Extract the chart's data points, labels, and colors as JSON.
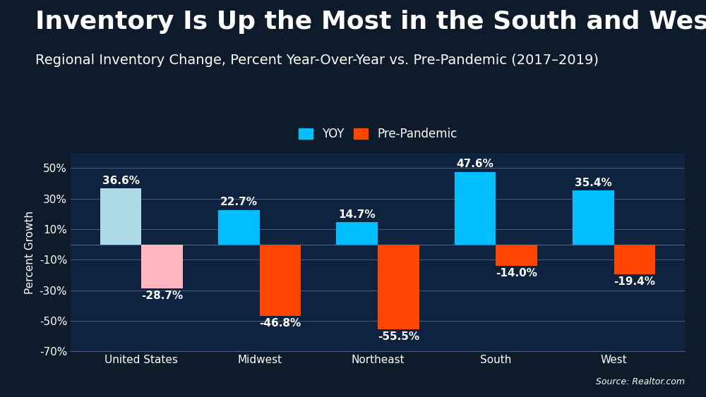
{
  "title": "Inventory Is Up the Most in the South and West",
  "subtitle": "Regional Inventory Change, Percent Year-Over-Year vs. Pre-Pandemic (2017–2019)",
  "categories": [
    "United States",
    "Midwest",
    "Northeast",
    "South",
    "West"
  ],
  "yoy_values": [
    36.6,
    22.7,
    14.7,
    47.6,
    35.4
  ],
  "prepandemic_values": [
    -28.7,
    -46.8,
    -55.5,
    -14.0,
    -19.4
  ],
  "yoy_colors": [
    "#add8e6",
    "#00bfff",
    "#00bfff",
    "#00bfff",
    "#00bfff"
  ],
  "prepandemic_colors": [
    "#ffb6c1",
    "#ff4500",
    "#ff4500",
    "#ff4500",
    "#ff4500"
  ],
  "yoy_color_default": "#00bfff",
  "prepandemic_color_default": "#ff4500",
  "ylabel": "Percent Growth",
  "ylim": [
    -70,
    60
  ],
  "yticks": [
    -70,
    -50,
    -30,
    -10,
    10,
    30,
    50
  ],
  "ytick_labels": [
    "-70%",
    "-50%",
    "-30%",
    "-10%",
    "10%",
    "30%",
    "50%"
  ],
  "background_color": "#0d1b2a",
  "plot_bg_color": "#0d2340",
  "grid_color": "#4a6080",
  "text_color": "#ffffff",
  "source_text": "Source: Realtor.com",
  "legend_labels": [
    "YOY",
    "Pre-Pandemic"
  ],
  "bar_width": 0.35,
  "title_fontsize": 26,
  "subtitle_fontsize": 14,
  "label_fontsize": 11,
  "tick_fontsize": 11,
  "annotation_fontsize": 11,
  "bottom_strip_color": "#1a8ab5"
}
